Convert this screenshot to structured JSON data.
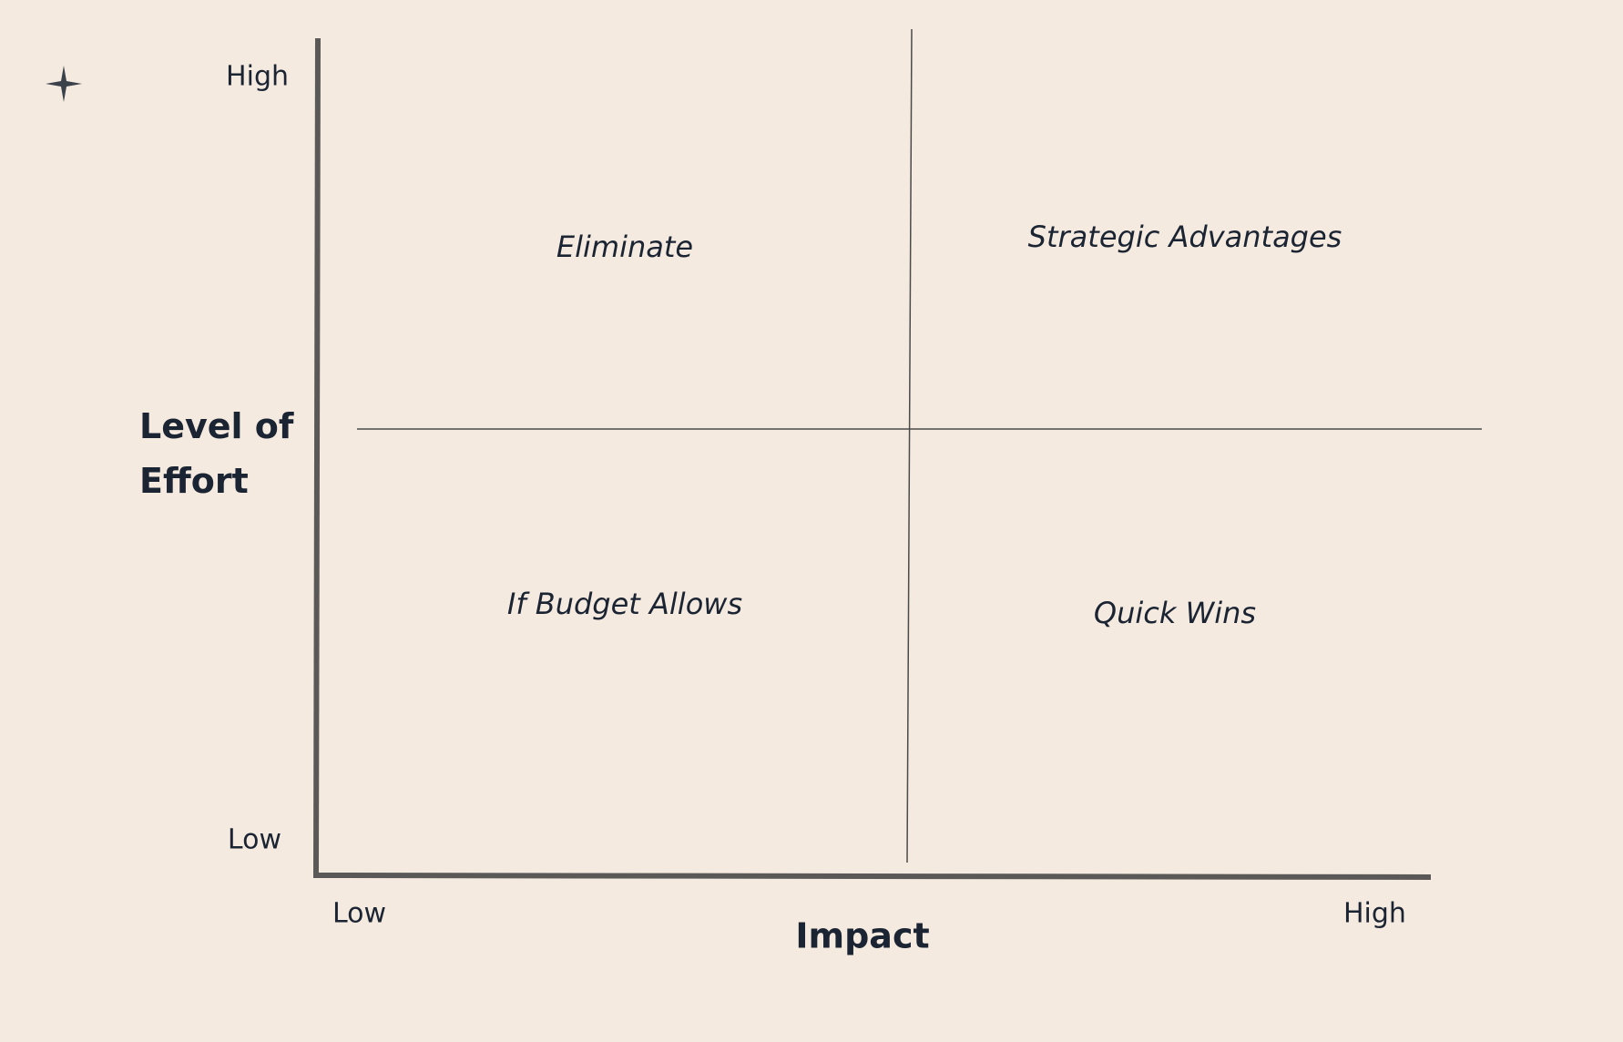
{
  "y_axis": {
    "title": "Level of Effort",
    "high": "High",
    "low": "Low"
  },
  "x_axis": {
    "title": "Impact",
    "low": "Low",
    "high": "High"
  },
  "quadrants": {
    "top_left": "Eliminate",
    "top_right": "Strategic Advantages",
    "bottom_left": "If Budget Allows",
    "bottom_right": "Quick Wins"
  }
}
